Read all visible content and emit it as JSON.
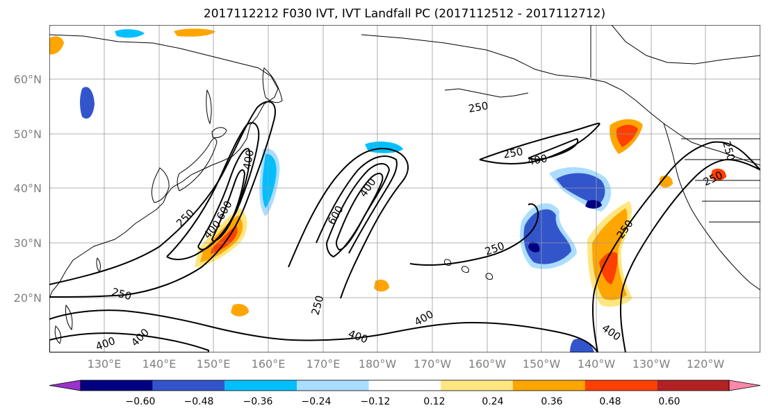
{
  "title": "2017112212 F030 IVT, IVT Landfall PC (2017112512 - 2017112712)",
  "map": {
    "lat_labels": [
      "60°N",
      "50°N",
      "40°N",
      "30°N",
      "20°N"
    ],
    "lon_labels": [
      "130°E",
      "140°E",
      "150°E",
      "160°E",
      "170°E",
      "180°W",
      "170°W",
      "160°W",
      "150°W",
      "140°W",
      "130°W",
      "120°W"
    ],
    "contour_levels": [
      250,
      400,
      600
    ],
    "contour_labels": [
      "250",
      "400",
      "600",
      "400",
      "250",
      "250",
      "600",
      "400",
      "250",
      "250",
      "400",
      "250",
      "250",
      "400",
      "400",
      "250",
      "400",
      "400",
      "400",
      "250",
      "250",
      "600",
      "400",
      "250"
    ]
  },
  "colorbar": {
    "colors": [
      "#9933cc",
      "#000080",
      "#3355cc",
      "#00bfff",
      "#aaddff",
      "#ffffff",
      "#ffe680",
      "#ffa500",
      "#ff4000",
      "#b22222",
      "#ff88aa"
    ],
    "tick_labels": [
      "−0.60",
      "−0.48",
      "−0.36",
      "−0.24",
      "−0.12",
      "0.12",
      "0.24",
      "0.36",
      "0.48",
      "0.60"
    ]
  },
  "chart_data": {
    "type": "heatmap",
    "title": "2017112212 F030 IVT, IVT Landfall PC (2017112512 - 2017112712)",
    "colorbar_bounds": [
      -0.6,
      -0.48,
      -0.36,
      -0.24,
      -0.12,
      0.12,
      0.24,
      0.36,
      0.48,
      0.6
    ],
    "contour_levels": [
      250,
      400,
      600
    ],
    "lat_range": [
      10,
      70
    ],
    "lon_range": [
      120,
      250
    ],
    "grid": true
  }
}
